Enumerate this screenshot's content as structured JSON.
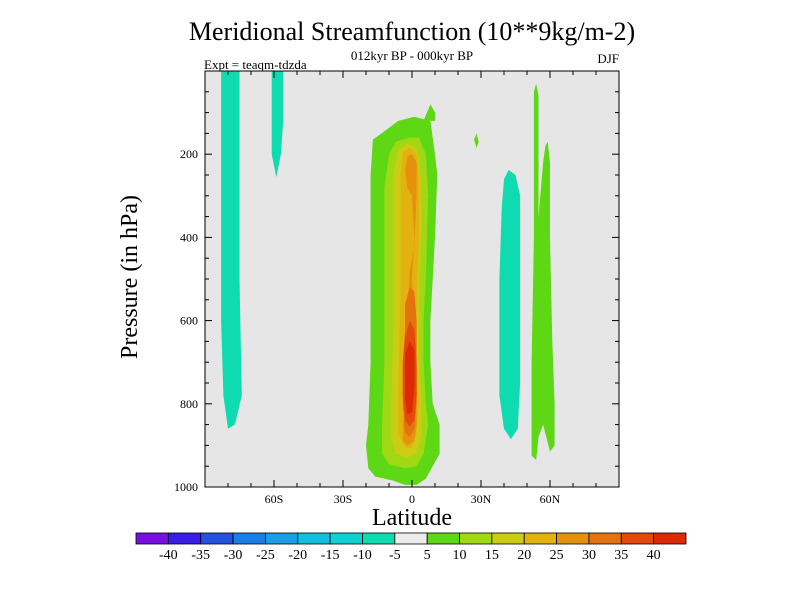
{
  "chart_data": {
    "type": "contour",
    "title": "Meridional Streamfunction (10**9kg/m-2)",
    "subtitle": "012kyr BP - 000kyr BP",
    "left_label": "Expt = teaqm-tdzda",
    "right_label": "DJF",
    "xlabel": "Latitude",
    "ylabel": "Pressure (in hPa)",
    "xlim": [
      -90,
      90
    ],
    "ylim": [
      0,
      1000
    ],
    "y_inverted": true,
    "x_ticks": [
      {
        "value": -60,
        "label": "60S"
      },
      {
        "value": -30,
        "label": "30S"
      },
      {
        "value": 0,
        "label": "0"
      },
      {
        "value": 30,
        "label": "30N"
      },
      {
        "value": 60,
        "label": "60N"
      }
    ],
    "y_ticks": [
      {
        "value": 200,
        "label": "200"
      },
      {
        "value": 400,
        "label": "400"
      },
      {
        "value": 600,
        "label": "600"
      },
      {
        "value": 800,
        "label": "800"
      },
      {
        "value": 1000,
        "label": "1000"
      }
    ],
    "background_color": "#e6e6e6",
    "colorbar": {
      "colors": [
        "#7a0ee0",
        "#3a1ee6",
        "#2452de",
        "#1a7ee6",
        "#1a9ee6",
        "#12bede",
        "#0ed2d2",
        "#0edcb0",
        "#ececec",
        "#5ed814",
        "#a0d814",
        "#cccc14",
        "#e4b20e",
        "#e4920e",
        "#e4720e",
        "#e44a0a",
        "#dc2a06"
      ],
      "labels": [
        "-40",
        "-35",
        "-30",
        "-25",
        "-20",
        "-15",
        "-10",
        "-5",
        "5",
        "10",
        "15",
        "20",
        "25",
        "30",
        "35",
        "40"
      ]
    },
    "regions": [
      {
        "level": -5,
        "color": "#0edcb0",
        "points": [
          [
            -83,
            0
          ],
          [
            -75,
            0
          ],
          [
            -75,
            210
          ],
          [
            -75,
            500
          ],
          [
            -74,
            780
          ],
          [
            -77,
            850
          ],
          [
            -80,
            860
          ],
          [
            -82,
            780
          ],
          [
            -83,
            600
          ],
          [
            -83,
            300
          ]
        ]
      },
      {
        "level": -5,
        "color": "#0edcb0",
        "points": [
          [
            -61,
            0
          ],
          [
            -56,
            0
          ],
          [
            -56,
            120
          ],
          [
            -57,
            200
          ],
          [
            -59,
            255
          ],
          [
            -61,
            200
          ],
          [
            -61,
            100
          ]
        ]
      },
      {
        "level": 5,
        "color": "#5ed814",
        "points": [
          [
            -18,
            250
          ],
          [
            -17,
            165
          ],
          [
            -12,
            145
          ],
          [
            -6,
            120
          ],
          [
            1,
            110
          ],
          [
            8,
            120
          ],
          [
            10,
            200
          ],
          [
            11,
            250
          ],
          [
            10,
            400
          ],
          [
            8,
            600
          ],
          [
            8,
            700
          ],
          [
            9,
            800
          ],
          [
            12,
            850
          ],
          [
            12,
            920
          ],
          [
            9,
            950
          ],
          [
            6,
            980
          ],
          [
            2,
            995
          ],
          [
            -3,
            995
          ],
          [
            -8,
            985
          ],
          [
            -16,
            975
          ],
          [
            -19,
            955
          ],
          [
            -20,
            900
          ],
          [
            -19,
            850
          ],
          [
            -18,
            700
          ],
          [
            -18,
            500
          ]
        ]
      },
      {
        "level": 5,
        "color": "#5ed814",
        "points": [
          [
            5,
            120
          ],
          [
            8,
            80
          ],
          [
            10,
            100
          ],
          [
            10,
            120
          ]
        ]
      },
      {
        "level": 5,
        "color": "#5ed814",
        "points": [
          [
            27,
            165
          ],
          [
            28,
            150
          ],
          [
            29,
            170
          ],
          [
            28,
            185
          ]
        ]
      },
      {
        "level": -5,
        "color": "#0edcb0",
        "points": [
          [
            39,
            330
          ],
          [
            40,
            260
          ],
          [
            42,
            238
          ],
          [
            45,
            250
          ],
          [
            47,
            300
          ],
          [
            47,
            500
          ],
          [
            47,
            750
          ],
          [
            46,
            860
          ],
          [
            43,
            885
          ],
          [
            40,
            860
          ],
          [
            38,
            780
          ],
          [
            38,
            500
          ]
        ]
      },
      {
        "level": 5,
        "color": "#5ed814",
        "points": [
          [
            53,
            50
          ],
          [
            54,
            30
          ],
          [
            55,
            60
          ],
          [
            55,
            350
          ],
          [
            57,
            220
          ],
          [
            58,
            180
          ],
          [
            59,
            170
          ],
          [
            60,
            220
          ],
          [
            60,
            400
          ],
          [
            61,
            650
          ],
          [
            62,
            800
          ],
          [
            62,
            900
          ],
          [
            60,
            915
          ],
          [
            57,
            850
          ],
          [
            55,
            880
          ],
          [
            54,
            935
          ],
          [
            52,
            925
          ],
          [
            52,
            700
          ],
          [
            53,
            400
          ],
          [
            53,
            200
          ]
        ]
      },
      {
        "level": 10,
        "color": "#a0d814",
        "points": [
          [
            -12,
            280
          ],
          [
            -10,
            200
          ],
          [
            -7,
            170
          ],
          [
            -1,
            160
          ],
          [
            3,
            160
          ],
          [
            6,
            200
          ],
          [
            7,
            300
          ],
          [
            6,
            500
          ],
          [
            5,
            600
          ],
          [
            5,
            700
          ],
          [
            6,
            800
          ],
          [
            7,
            850
          ],
          [
            5,
            920
          ],
          [
            2,
            950
          ],
          [
            -3,
            955
          ],
          [
            -10,
            945
          ],
          [
            -13,
            920
          ],
          [
            -13,
            850
          ],
          [
            -12,
            700
          ],
          [
            -12,
            500
          ]
        ]
      },
      {
        "level": 15,
        "color": "#cccc14",
        "points": [
          [
            -8,
            250
          ],
          [
            -6,
            190
          ],
          [
            -2,
            175
          ],
          [
            2,
            185
          ],
          [
            4,
            260
          ],
          [
            4,
            400
          ],
          [
            3,
            550
          ],
          [
            3,
            700
          ],
          [
            4,
            800
          ],
          [
            4,
            880
          ],
          [
            2,
            920
          ],
          [
            -2,
            930
          ],
          [
            -7,
            920
          ],
          [
            -9,
            880
          ],
          [
            -9,
            800
          ],
          [
            -8,
            600
          ],
          [
            -8,
            400
          ]
        ]
      },
      {
        "level": 20,
        "color": "#e4b20e",
        "points": [
          [
            -5,
            250
          ],
          [
            -4,
            195
          ],
          [
            -1,
            185
          ],
          [
            2,
            200
          ],
          [
            3,
            260
          ],
          [
            3,
            400
          ],
          [
            2,
            550
          ],
          [
            2,
            700
          ],
          [
            3,
            800
          ],
          [
            2,
            870
          ],
          [
            0,
            905
          ],
          [
            -3,
            905
          ],
          [
            -6,
            870
          ],
          [
            -6,
            750
          ],
          [
            -5,
            550
          ],
          [
            -5,
            400
          ]
        ]
      },
      {
        "level": 25,
        "color": "#e4920e",
        "points": [
          [
            -3,
            240
          ],
          [
            -2,
            205
          ],
          [
            0,
            200
          ],
          [
            2,
            220
          ],
          [
            2,
            300
          ],
          [
            1,
            420
          ],
          [
            -1,
            480
          ],
          [
            -2,
            600
          ],
          [
            -3,
            700
          ],
          [
            -3,
            800
          ],
          [
            -4,
            850
          ],
          [
            -4,
            890
          ],
          [
            -2,
            900
          ],
          [
            1,
            890
          ],
          [
            2,
            850
          ],
          [
            2,
            750
          ],
          [
            1,
            600
          ],
          [
            0,
            500
          ],
          [
            1,
            400
          ],
          [
            0,
            300
          ],
          [
            -2,
            280
          ]
        ]
      },
      {
        "level": 30,
        "color": "#e4720e",
        "points": [
          [
            -3,
            560
          ],
          [
            -1,
            520
          ],
          [
            1,
            530
          ],
          [
            2,
            600
          ],
          [
            2,
            700
          ],
          [
            2,
            800
          ],
          [
            1,
            860
          ],
          [
            -1,
            880
          ],
          [
            -3,
            870
          ],
          [
            -4,
            800
          ],
          [
            -4,
            700
          ],
          [
            -3,
            620
          ]
        ]
      },
      {
        "level": 35,
        "color": "#e44a0a",
        "points": [
          [
            -3,
            640
          ],
          [
            -1,
            600
          ],
          [
            1,
            620
          ],
          [
            2,
            700
          ],
          [
            2,
            780
          ],
          [
            1,
            840
          ],
          [
            -1,
            855
          ],
          [
            -3,
            840
          ],
          [
            -4,
            780
          ],
          [
            -4,
            700
          ]
        ]
      },
      {
        "level": 40,
        "color": "#dc2a06",
        "points": [
          [
            -3,
            680
          ],
          [
            -1,
            650
          ],
          [
            1,
            670
          ],
          [
            1,
            760
          ],
          [
            0,
            820
          ],
          [
            -2,
            825
          ],
          [
            -3,
            790
          ],
          [
            -3,
            720
          ]
        ]
      }
    ]
  }
}
